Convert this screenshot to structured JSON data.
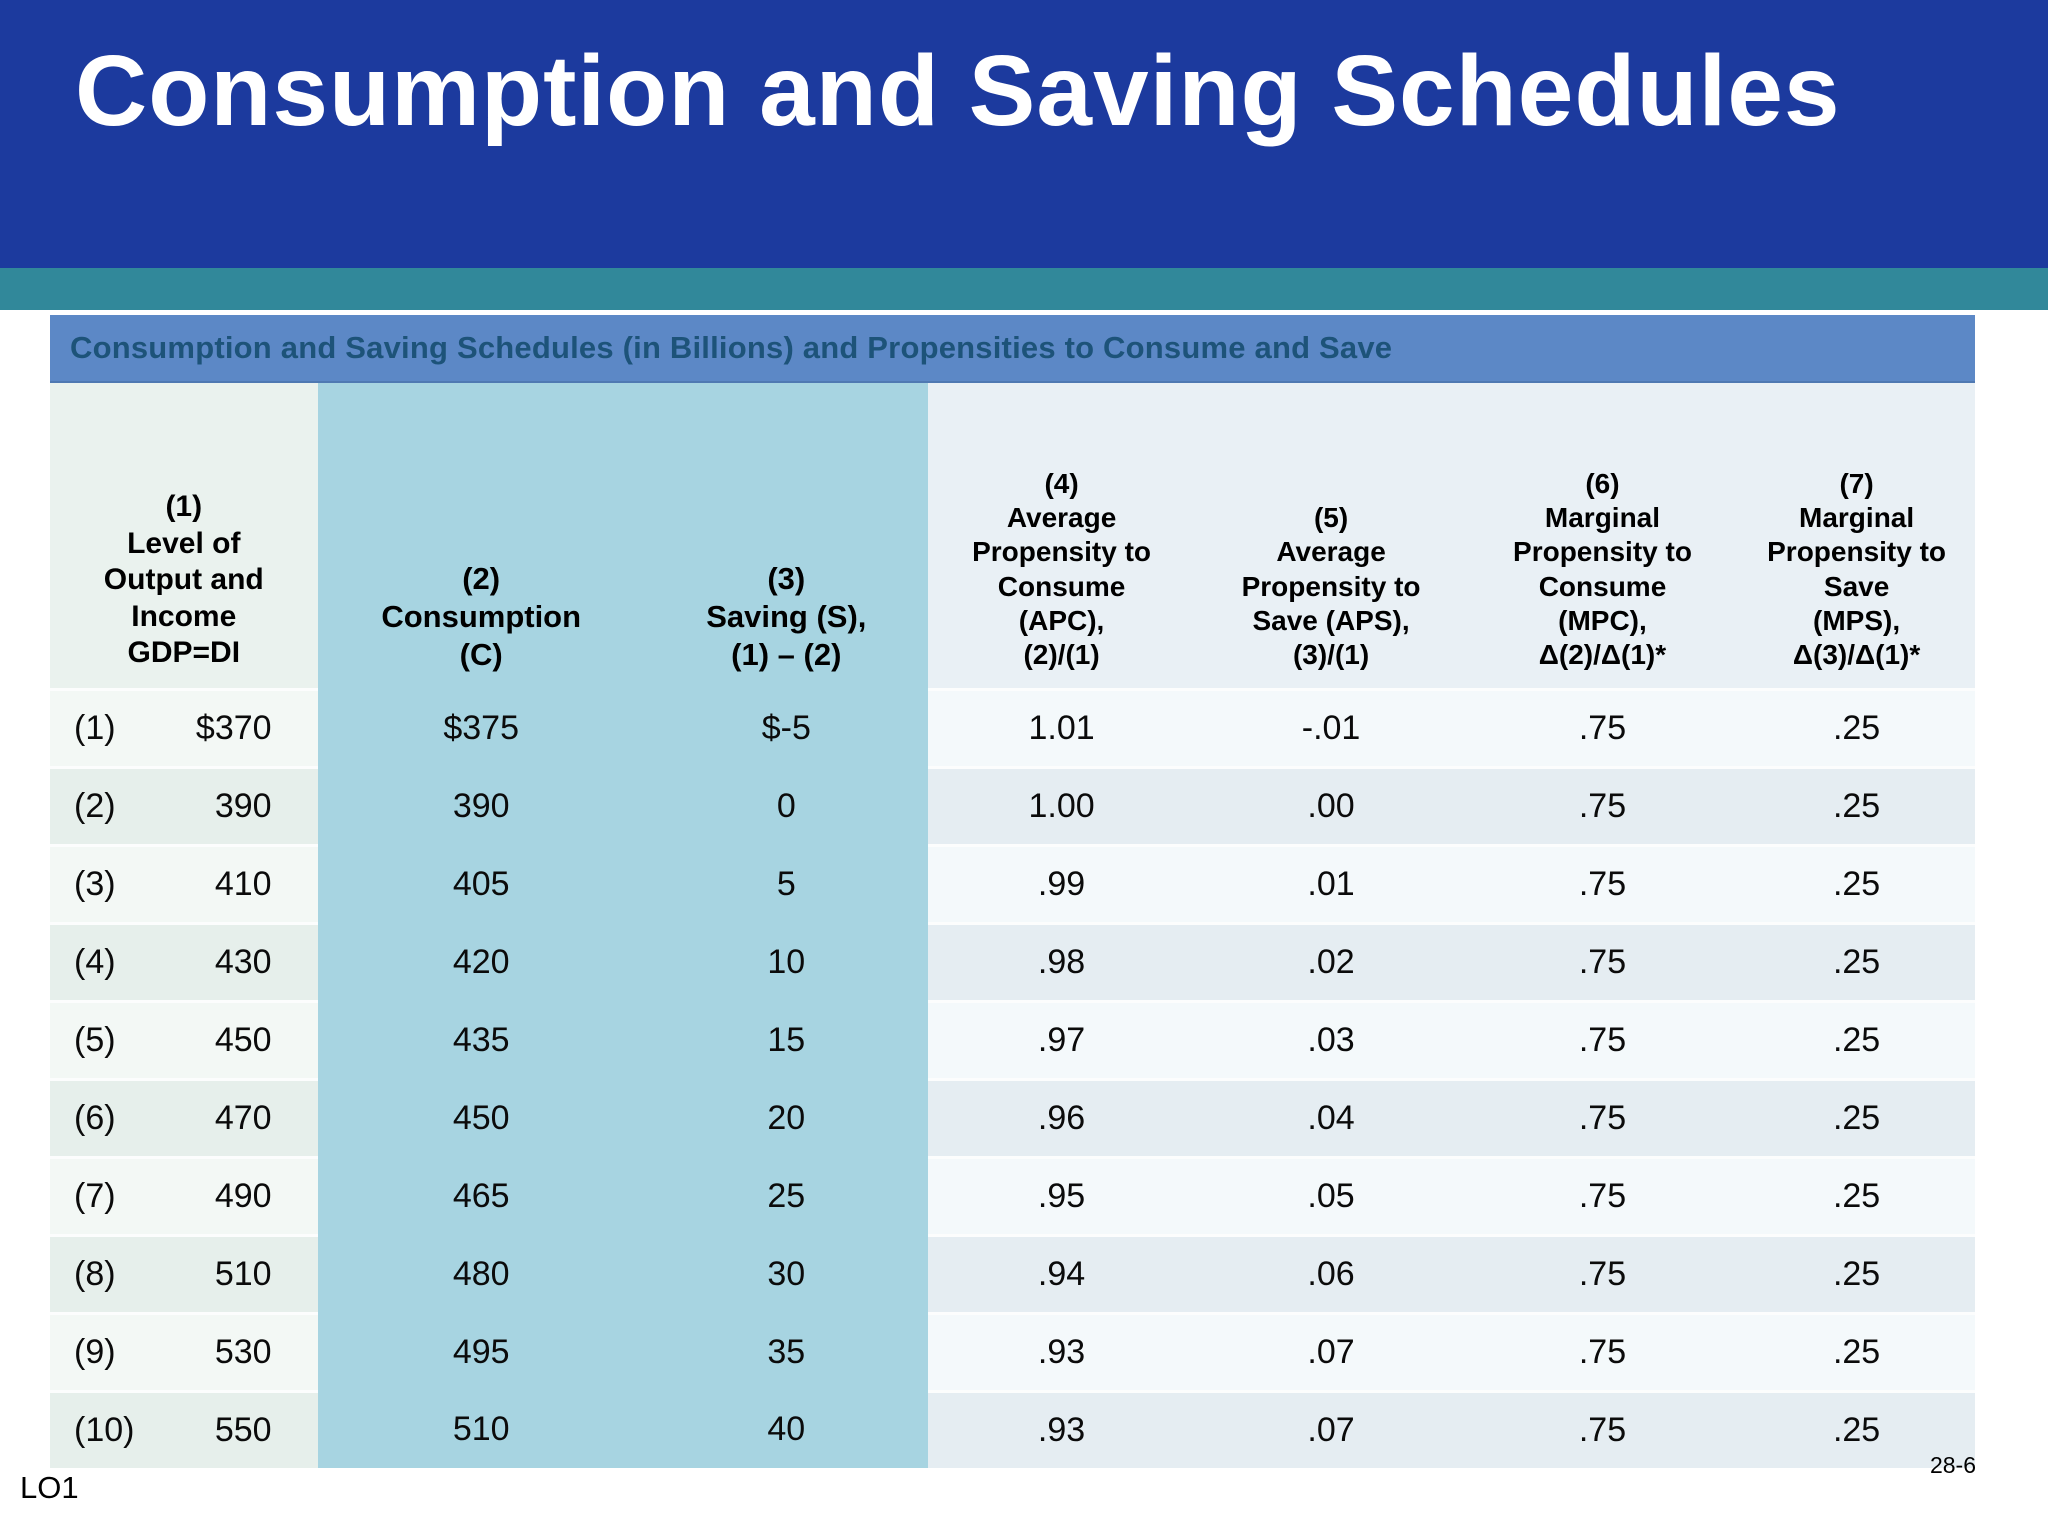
{
  "slide": {
    "title": "Consumption and Saving Schedules",
    "footer_left": "LO1",
    "page_number": "28-6"
  },
  "table": {
    "title": "Consumption and Saving Schedules (in Billions) and Propensities to Consume and Save",
    "columns": [
      {
        "key": "income",
        "style": "col1",
        "lines": [
          "(1)",
          "Level of",
          "Output and",
          "Income",
          "GDP=DI"
        ]
      },
      {
        "key": "consumption",
        "style": "teal",
        "lines": [
          "(2)",
          "Consumption",
          "(C)"
        ]
      },
      {
        "key": "saving",
        "style": "teal",
        "lines": [
          "(3)",
          "Saving (S),",
          "(1) – (2)"
        ]
      },
      {
        "key": "apc",
        "style": "light",
        "lines": [
          "(4)",
          "Average",
          "Propensity to",
          "Consume",
          "(APC),",
          "(2)/(1)"
        ]
      },
      {
        "key": "aps",
        "style": "light",
        "lines": [
          "(5)",
          "Average",
          "Propensity to",
          "Save (APS),",
          "(3)/(1)"
        ]
      },
      {
        "key": "mpc",
        "style": "light",
        "lines": [
          "(6)",
          "Marginal",
          "Propensity to",
          "Consume",
          "(MPC),",
          "Δ(2)/Δ(1)*"
        ]
      },
      {
        "key": "mps",
        "style": "light",
        "lines": [
          "(7)",
          "Marginal",
          "Propensity to",
          "Save",
          "(MPS),",
          "Δ(3)/Δ(1)*"
        ]
      }
    ],
    "rows": [
      {
        "label": "(1)",
        "income": "$370",
        "consumption": "$375",
        "saving": "$-5",
        "apc": "1.01",
        "aps": "-.01",
        "mpc": ".75",
        "mps": ".25"
      },
      {
        "label": "(2)",
        "income": "390",
        "consumption": "390",
        "saving": "0",
        "apc": "1.00",
        "aps": ".00",
        "mpc": ".75",
        "mps": ".25"
      },
      {
        "label": "(3)",
        "income": "410",
        "consumption": "405",
        "saving": "5",
        "apc": ".99",
        "aps": ".01",
        "mpc": ".75",
        "mps": ".25"
      },
      {
        "label": "(4)",
        "income": "430",
        "consumption": "420",
        "saving": "10",
        "apc": ".98",
        "aps": ".02",
        "mpc": ".75",
        "mps": ".25"
      },
      {
        "label": "(5)",
        "income": "450",
        "consumption": "435",
        "saving": "15",
        "apc": ".97",
        "aps": ".03",
        "mpc": ".75",
        "mps": ".25"
      },
      {
        "label": "(6)",
        "income": "470",
        "consumption": "450",
        "saving": "20",
        "apc": ".96",
        "aps": ".04",
        "mpc": ".75",
        "mps": ".25"
      },
      {
        "label": "(7)",
        "income": "490",
        "consumption": "465",
        "saving": "25",
        "apc": ".95",
        "aps": ".05",
        "mpc": ".75",
        "mps": ".25"
      },
      {
        "label": "(8)",
        "income": "510",
        "consumption": "480",
        "saving": "30",
        "apc": ".94",
        "aps": ".06",
        "mpc": ".75",
        "mps": ".25"
      },
      {
        "label": "(9)",
        "income": "530",
        "consumption": "495",
        "saving": "35",
        "apc": ".93",
        "aps": ".07",
        "mpc": ".75",
        "mps": ".25"
      },
      {
        "label": "(10)",
        "income": "550",
        "consumption": "510",
        "saving": "40",
        "apc": ".93",
        "aps": ".07",
        "mpc": ".75",
        "mps": ".25"
      }
    ]
  },
  "colors": {
    "title_band": "#1c3a9e",
    "accent_band": "#31889a",
    "table_title_bg": "#5c88c6",
    "table_title_text": "#1d5379",
    "highlight_columns": "#a7d4e1",
    "row_light": "#f4f9fb",
    "row_dark": "#e5edf2"
  }
}
